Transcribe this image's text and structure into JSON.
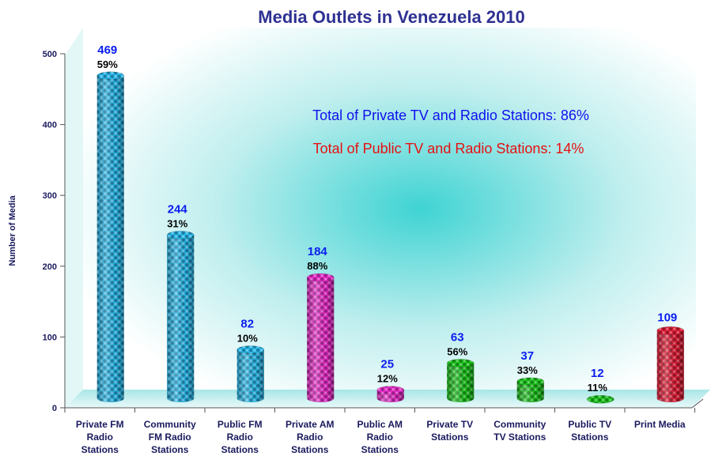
{
  "chart_data": {
    "type": "bar",
    "title": "Media Outlets in Venezuela 2010",
    "ylabel": "Number of  Media",
    "xlabel": "",
    "ylim": [
      0,
      500
    ],
    "yticks": [
      "0",
      "100",
      "200",
      "300",
      "400",
      "500"
    ],
    "categories": [
      [
        "Private FM",
        "Radio",
        "Stations"
      ],
      [
        "Community",
        "FM Radio",
        "Stations"
      ],
      [
        "Public FM",
        "Radio",
        "Stations"
      ],
      [
        "Private AM",
        "Radio",
        "Stations"
      ],
      [
        "Public AM",
        "Radio",
        "Stations"
      ],
      [
        "Private TV",
        "Stations"
      ],
      [
        "Community",
        "TV Stations"
      ],
      [
        "Public TV",
        "Stations"
      ],
      [
        "Print Media"
      ]
    ],
    "values": [
      469,
      244,
      82,
      184,
      25,
      63,
      37,
      12,
      109
    ],
    "value_labels": [
      "469",
      "244",
      "82",
      "184",
      "25",
      "63",
      "37",
      "12",
      "109"
    ],
    "percent_labels": [
      "59%",
      "31%",
      "10%",
      "88%",
      "12%",
      "56%",
      "33%",
      "11%",
      ""
    ],
    "bar_colors": [
      "#29b6e8",
      "#29b6e8",
      "#29b6e8",
      "#e62ec8",
      "#e62ec8",
      "#1fc21f",
      "#1fc21f",
      "#1fc21f",
      "#e0203a"
    ],
    "annotations": [
      {
        "text": "Total of Private TV and Radio Stations: 86%",
        "color": "#1010ee"
      },
      {
        "text": "Total of Public TV and Radio Stations: 14%",
        "color": "#e81010"
      }
    ],
    "grid": false
  }
}
